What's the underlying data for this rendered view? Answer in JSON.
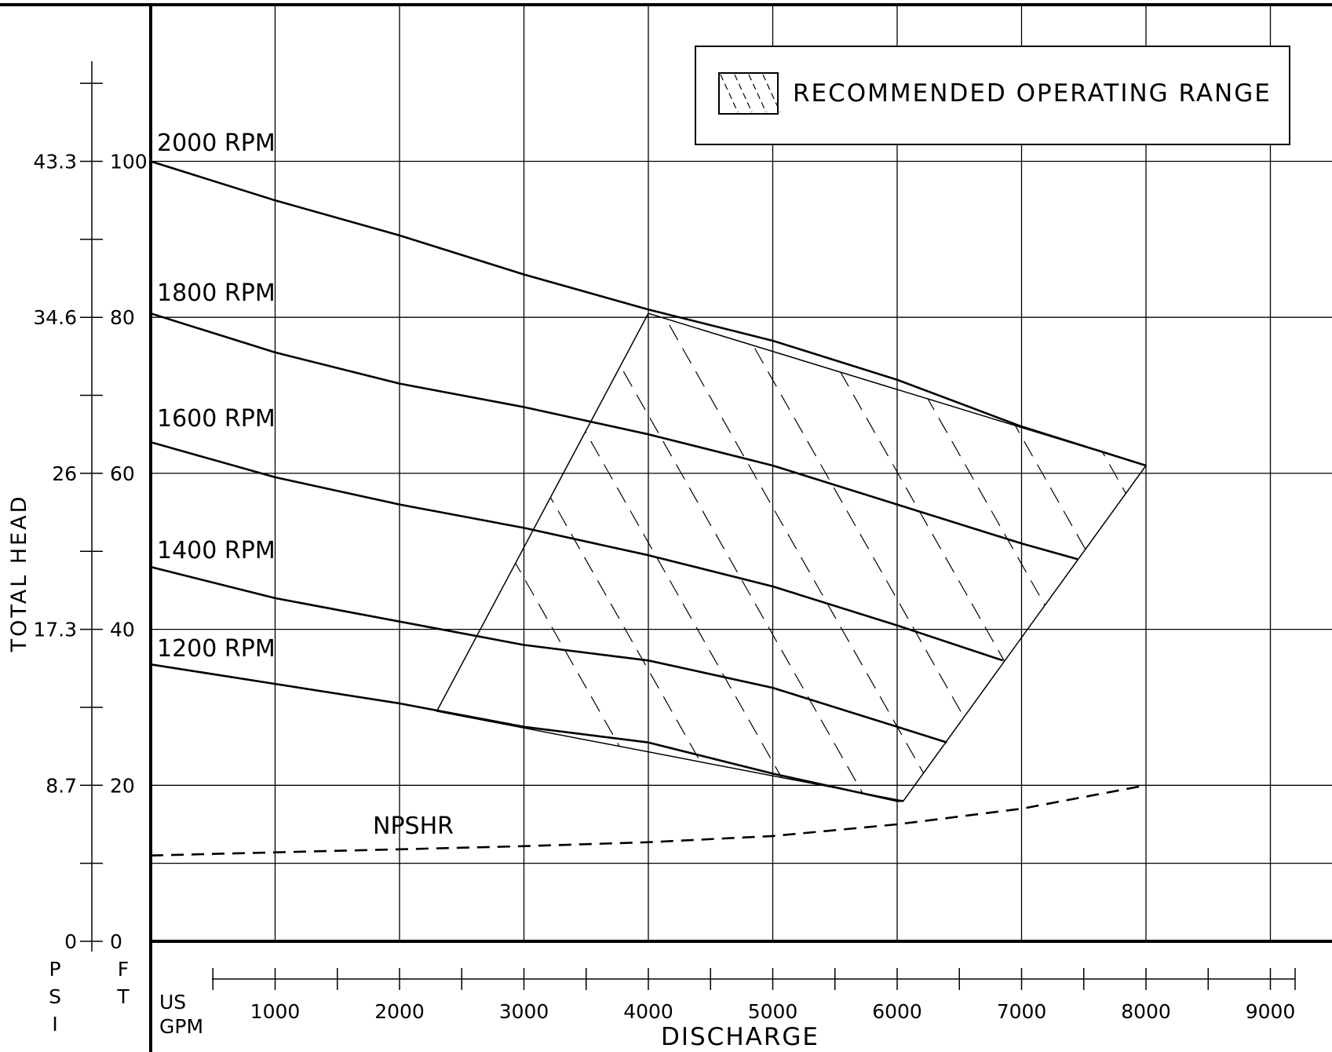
{
  "chart_data": {
    "type": "line",
    "title": "",
    "xlabel": "DISCHARGE",
    "ylabel": "TOTAL HEAD",
    "x_unit_label": [
      "US",
      "GPM"
    ],
    "y_unit_left": "PSI",
    "y_unit_right": "FT",
    "xlim": [
      0,
      9500
    ],
    "ylim": [
      0,
      120
    ],
    "grid": true,
    "x_ticks": [
      1000,
      2000,
      3000,
      4000,
      5000,
      6000,
      7000,
      8000,
      9000
    ],
    "x_tick_labels": [
      "1000",
      "2000",
      "3000",
      "4000",
      "5000",
      "6000",
      "7000",
      "8000",
      "9000"
    ],
    "y_ticks_ft": [
      0,
      20,
      40,
      60,
      80,
      100
    ],
    "y_tick_labels_ft": [
      "0",
      "20",
      "40",
      "60",
      "80",
      "100"
    ],
    "y_tick_labels_psi": [
      "0",
      "8.7",
      "17.3",
      "26",
      "34.6",
      "43.3"
    ],
    "legend": {
      "position": "top-right",
      "label": "RECOMMENDED OPERATING RANGE"
    },
    "series": [
      {
        "name": "2000 RPM",
        "style": "solid",
        "x": [
          0,
          1000,
          2000,
          3000,
          4000,
          5000,
          6000,
          7000,
          8000
        ],
        "y": [
          100,
          95,
          90.5,
          85.5,
          81,
          77,
          72,
          66,
          61
        ]
      },
      {
        "name": "1800 RPM",
        "style": "solid",
        "x": [
          0,
          1000,
          2000,
          3000,
          4000,
          5000,
          6000,
          7000,
          7450
        ],
        "y": [
          80.5,
          75.5,
          71.5,
          68.5,
          65,
          61,
          56,
          51,
          49
        ]
      },
      {
        "name": "1600 RPM",
        "style": "solid",
        "x": [
          0,
          1000,
          2000,
          3000,
          4000,
          5000,
          6000,
          6850
        ],
        "y": [
          64,
          59.5,
          56,
          53,
          49.5,
          45.5,
          40.5,
          36
        ]
      },
      {
        "name": "1400 RPM",
        "style": "solid",
        "x": [
          0,
          1000,
          2000,
          3000,
          4000,
          5000,
          6000,
          6400
        ],
        "y": [
          48,
          44,
          41,
          38,
          36,
          32.5,
          27.5,
          25.5
        ]
      },
      {
        "name": "1200 RPM",
        "style": "solid",
        "x": [
          0,
          1000,
          2000,
          3000,
          4000,
          5000,
          6000,
          6050
        ],
        "y": [
          35.5,
          33,
          30.5,
          27.5,
          25.5,
          21.5,
          18,
          18
        ]
      },
      {
        "name": "NPSHR",
        "style": "dashed",
        "x": [
          0,
          1000,
          2000,
          3000,
          4000,
          5000,
          6000,
          7000,
          8000
        ],
        "y": [
          11,
          11.4,
          11.8,
          12.2,
          12.7,
          13.5,
          15,
          17,
          20
        ]
      }
    ],
    "operating_range": {
      "x": [
        2300,
        4000,
        8000,
        6050
      ],
      "y": [
        29.5,
        80.5,
        61,
        18
      ]
    }
  }
}
